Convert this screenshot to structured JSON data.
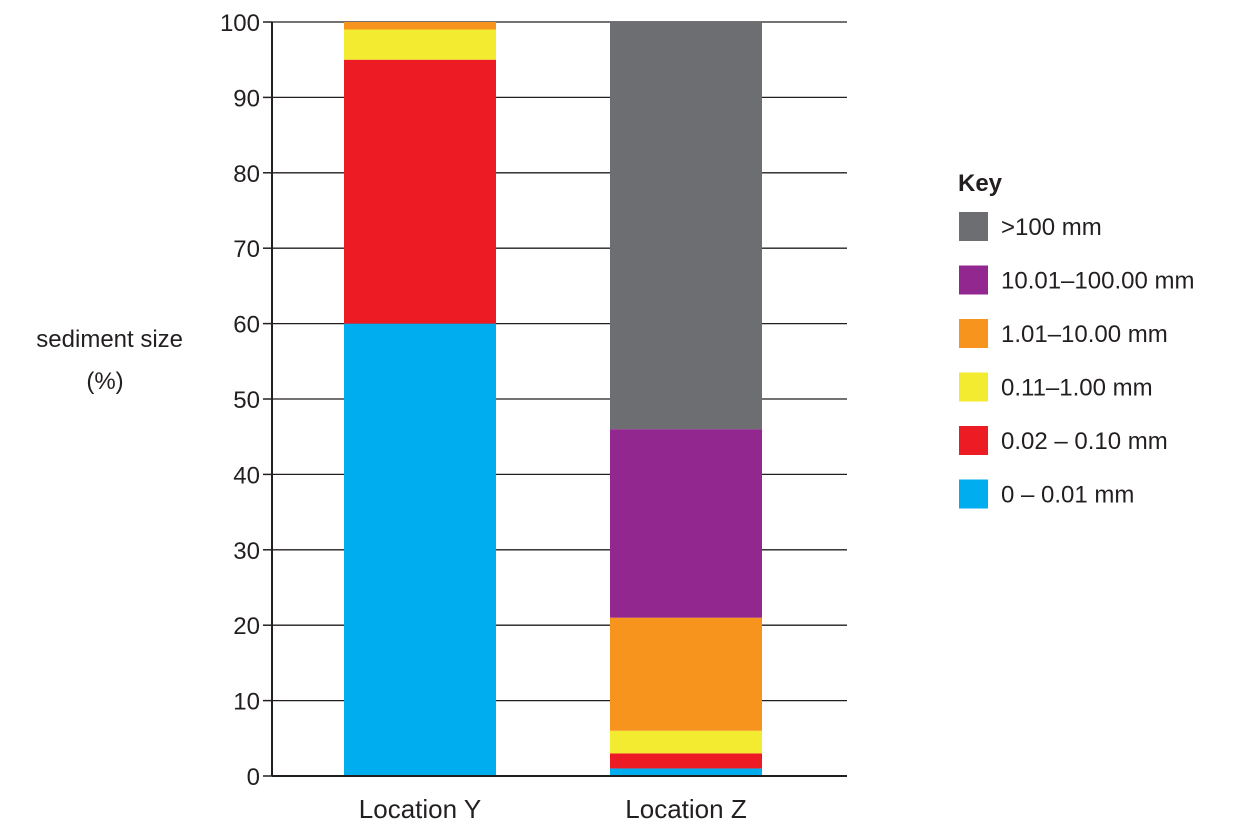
{
  "chart_data": {
    "type": "bar",
    "stacked": true,
    "ylabel": "sediment size (%)",
    "ylabel_lines": [
      "sediment size",
      "(%)"
    ],
    "xlabel": "",
    "ylim": [
      0,
      100
    ],
    "yticks": [
      0,
      10,
      20,
      30,
      40,
      50,
      60,
      70,
      80,
      90,
      100
    ],
    "grid": "horizontal",
    "categories": [
      "Location Y",
      "Location Z"
    ],
    "series": [
      {
        "name": "0 – 0.01 mm",
        "color": "#00aeef",
        "values": [
          60,
          1
        ]
      },
      {
        "name": "0.02 – 0.10 mm",
        "color": "#ed1c24",
        "values": [
          35,
          2
        ]
      },
      {
        "name": "0.11–1.00 mm",
        "color": "#f3eb2f",
        "values": [
          4,
          3
        ]
      },
      {
        "name": "1.01–10.00 mm",
        "color": "#f7941e",
        "values": [
          1,
          15
        ]
      },
      {
        "name": "10.01–100.00 mm",
        "color": "#92278f",
        "values": [
          0,
          25
        ]
      },
      {
        "name": ">100 mm",
        "color": "#6d6e71",
        "values": [
          0,
          54
        ]
      }
    ],
    "legend": {
      "title": "Key",
      "position": "right",
      "order": [
        ">100 mm",
        "10.01–100.00 mm",
        "1.01–10.00 mm",
        "0.11–1.00 mm",
        "0.02 – 0.10 mm",
        "0 – 0.01 mm"
      ]
    }
  }
}
